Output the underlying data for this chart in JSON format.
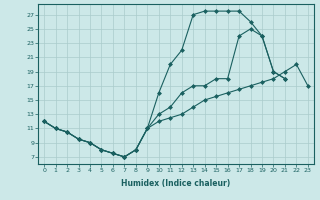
{
  "xlabel": "Humidex (Indice chaleur)",
  "bg_color": "#cce8e8",
  "grid_color": "#aacccc",
  "line_color": "#1a6060",
  "curve1_x": [
    0,
    1,
    2,
    3,
    4,
    5,
    6,
    7,
    8,
    9,
    10,
    11,
    12,
    13,
    14,
    15,
    16,
    17,
    18,
    19,
    20,
    21
  ],
  "curve1_y": [
    12,
    11,
    10.5,
    9.5,
    9,
    8,
    7.5,
    7,
    8,
    11,
    16,
    20,
    22,
    27,
    27.5,
    27.5,
    27.5,
    27.5,
    26,
    24,
    19,
    18
  ],
  "curve2_x": [
    0,
    1,
    2,
    3,
    4,
    5,
    6,
    7,
    8,
    9,
    10,
    11,
    12,
    13,
    14,
    15,
    16,
    17,
    18,
    19,
    20,
    21,
    22,
    23
  ],
  "curve2_y": [
    12,
    11,
    10.5,
    9.5,
    9,
    8,
    7.5,
    7,
    8,
    11,
    12,
    12.5,
    13,
    14,
    15,
    15.5,
    16,
    16.5,
    17,
    17.5,
    18,
    19,
    20,
    17
  ],
  "curve3_x": [
    0,
    1,
    2,
    3,
    4,
    5,
    6,
    7,
    8,
    9,
    10,
    11,
    12,
    13,
    14,
    15,
    16,
    17,
    18,
    19,
    20,
    21
  ],
  "curve3_y": [
    12,
    11,
    10.5,
    9.5,
    9,
    8,
    7.5,
    7,
    8,
    11,
    13,
    14,
    16,
    17,
    17,
    18,
    18,
    24,
    25,
    24,
    19,
    18
  ],
  "xlim": [
    -0.5,
    23.5
  ],
  "ylim": [
    6,
    28.5
  ],
  "yticks": [
    7,
    9,
    11,
    13,
    15,
    17,
    19,
    21,
    23,
    25,
    27
  ],
  "xticks": [
    0,
    1,
    2,
    3,
    4,
    5,
    6,
    7,
    8,
    9,
    10,
    11,
    12,
    13,
    14,
    15,
    16,
    17,
    18,
    19,
    20,
    21,
    22,
    23
  ]
}
